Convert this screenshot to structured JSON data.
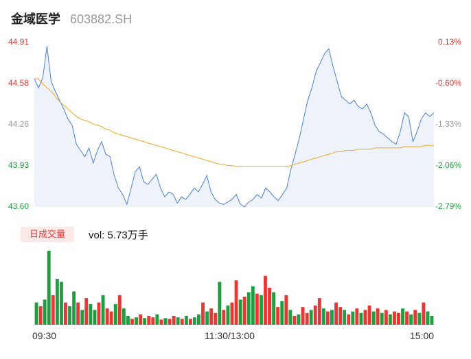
{
  "header": {
    "name": "金域医学",
    "code": "603882.SH"
  },
  "price_axis": [
    "44.91",
    "44.58",
    "44.26",
    "43.93",
    "43.60"
  ],
  "pct_axis": [
    "0.13%",
    "-0.60%",
    "-1.33%",
    "-2.06%",
    "-2.79%"
  ],
  "colors": {
    "up": "#e53935",
    "down": "#1e9e3e",
    "neutral": "#999999",
    "price_line": "#4a7fd9",
    "avg_line": "#f2a61c"
  },
  "volume": {
    "tag": "日成交量",
    "label": "vol: 5.73万手"
  },
  "time_labels": [
    "09:30",
    "11:30/13:00",
    "15:00"
  ],
  "chart_data": {
    "type": "line",
    "title": "",
    "ylim": [
      43.6,
      44.91
    ],
    "pct_range": [
      -2.79,
      0.13
    ],
    "price": [
      44.62,
      44.55,
      44.63,
      44.88,
      44.6,
      44.52,
      44.45,
      44.38,
      44.3,
      44.25,
      44.1,
      44.05,
      44.0,
      44.07,
      43.95,
      44.05,
      44.12,
      44.02,
      44.0,
      43.85,
      43.75,
      43.7,
      43.62,
      43.75,
      43.88,
      43.92,
      43.8,
      43.78,
      43.82,
      43.86,
      43.75,
      43.68,
      43.72,
      43.7,
      43.63,
      43.68,
      43.66,
      43.7,
      43.75,
      43.72,
      43.78,
      43.85,
      43.72,
      43.66,
      43.63,
      43.62,
      43.64,
      43.66,
      43.7,
      43.62,
      43.6,
      43.64,
      43.66,
      43.7,
      43.67,
      43.75,
      43.72,
      43.68,
      43.65,
      43.7,
      43.75,
      43.9,
      44.02,
      44.15,
      44.3,
      44.45,
      44.55,
      44.68,
      44.75,
      44.82,
      44.86,
      44.72,
      44.6,
      44.48,
      44.45,
      44.42,
      44.45,
      44.4,
      44.38,
      44.42,
      44.35,
      44.25,
      44.2,
      44.18,
      44.15,
      44.12,
      44.1,
      44.2,
      44.35,
      44.32,
      44.12,
      44.2,
      44.3,
      44.35,
      44.32,
      44.35
    ],
    "avg": [
      44.62,
      44.62,
      44.58,
      44.55,
      44.52,
      44.48,
      44.44,
      44.41,
      44.38,
      44.35,
      44.32,
      44.3,
      44.29,
      44.28,
      44.26,
      44.25,
      44.24,
      44.22,
      44.21,
      44.19,
      44.18,
      44.17,
      44.16,
      44.15,
      44.14,
      44.13,
      44.12,
      44.11,
      44.1,
      44.09,
      44.08,
      44.07,
      44.06,
      44.05,
      44.04,
      44.03,
      44.02,
      44.01,
      44.0,
      43.99,
      43.98,
      43.97,
      43.96,
      43.95,
      43.94,
      43.94,
      43.93,
      43.93,
      43.92,
      43.92,
      43.92,
      43.92,
      43.92,
      43.92,
      43.92,
      43.92,
      43.92,
      43.92,
      43.92,
      43.92,
      43.92,
      43.93,
      43.94,
      43.95,
      43.96,
      43.97,
      43.98,
      43.99,
      44.0,
      44.01,
      44.02,
      44.03,
      44.04,
      44.04,
      44.05,
      44.05,
      44.05,
      44.06,
      44.06,
      44.06,
      44.06,
      44.07,
      44.07,
      44.07,
      44.07,
      44.07,
      44.07,
      44.07,
      44.08,
      44.08,
      44.08,
      44.08,
      44.08,
      44.09,
      44.09,
      44.09
    ],
    "volume_up": [
      0,
      1,
      0,
      0,
      1,
      0,
      0,
      1,
      0,
      0,
      1,
      0,
      1,
      0,
      0,
      1,
      0,
      1,
      1,
      0,
      1,
      0,
      0,
      1,
      0,
      1,
      0,
      1,
      1,
      0,
      1,
      0,
      1,
      1,
      0,
      1,
      0,
      1,
      0,
      0,
      1,
      0,
      1,
      1,
      0,
      1,
      0,
      1,
      1,
      0,
      1,
      0,
      0,
      1,
      0,
      1,
      1,
      0,
      1,
      0,
      1,
      0,
      1,
      0,
      1,
      1,
      0,
      1,
      1,
      0,
      1,
      0,
      1,
      1,
      0,
      1,
      0,
      1,
      0,
      1,
      1,
      0,
      1,
      0,
      1,
      0,
      1,
      1,
      0,
      1,
      0,
      1,
      0,
      1,
      0,
      0
    ],
    "volume": [
      30,
      25,
      34,
      100,
      40,
      62,
      58,
      30,
      25,
      45,
      30,
      20,
      36,
      28,
      20,
      30,
      40,
      22,
      18,
      28,
      40,
      22,
      12,
      8,
      10,
      14,
      9,
      12,
      10,
      14,
      7,
      9,
      8,
      12,
      10,
      8,
      12,
      8,
      10,
      14,
      30,
      18,
      22,
      16,
      58,
      20,
      26,
      30,
      60,
      34,
      38,
      44,
      52,
      42,
      40,
      66,
      50,
      44,
      24,
      32,
      40,
      20,
      12,
      14,
      24,
      16,
      20,
      26,
      36,
      22,
      18,
      20,
      30,
      24,
      20,
      14,
      18,
      22,
      16,
      20,
      26,
      18,
      22,
      16,
      20,
      14,
      18,
      16,
      22,
      18,
      14,
      20,
      16,
      30,
      18,
      12
    ]
  }
}
